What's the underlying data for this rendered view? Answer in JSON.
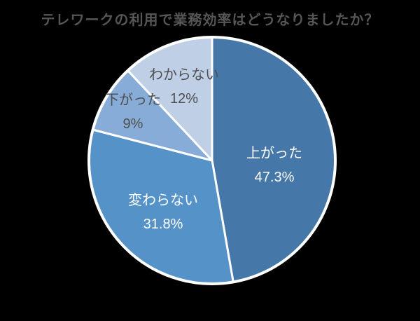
{
  "chart_data": {
    "type": "pie",
    "title": "テレワークの利用で業務効率はどうなりましたか？",
    "direction": "clockwise",
    "start_angle_deg": 0,
    "legend": "none (labels inside slices)",
    "background": "#000000",
    "separator_color": "#FFFFFF",
    "title_color": "#565656",
    "slices": [
      {
        "name": "increased",
        "label": "上がった",
        "value": 47.3,
        "display": "47.3%",
        "color": "#4577A8",
        "text_color": "#FFFFFF"
      },
      {
        "name": "unchanged",
        "label": "変わらない",
        "value": 31.8,
        "display": "31.8%",
        "color": "#5592C8",
        "text_color": "#FFFFFF"
      },
      {
        "name": "decreased",
        "label": "下がった",
        "value": 9,
        "display": "9%",
        "color": "#87ACD8",
        "text_color": "#4F4F4F"
      },
      {
        "name": "unknown",
        "label": "わからない",
        "value": 12,
        "display": "12%",
        "color": "#BFD0E6",
        "text_color": "#4F4F4F"
      }
    ]
  }
}
